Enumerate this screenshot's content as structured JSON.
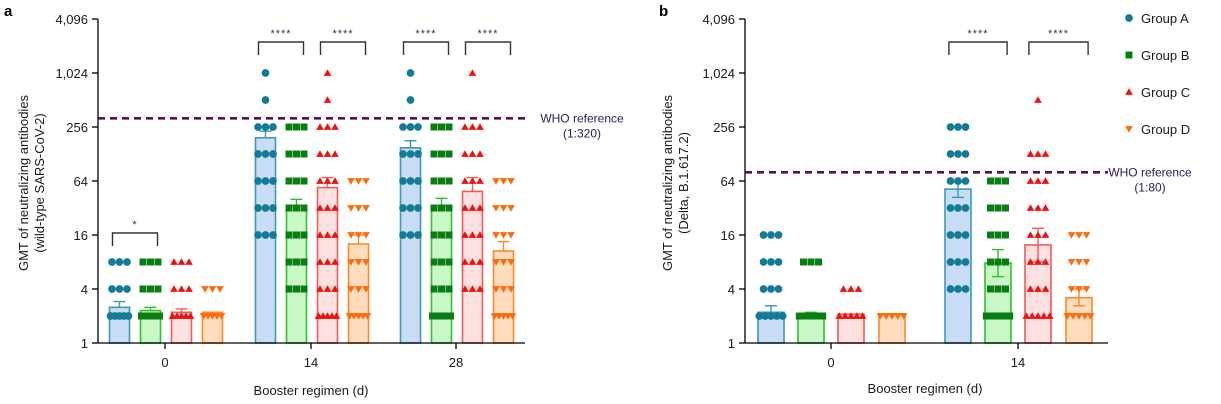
{
  "legend": {
    "items": [
      {
        "label": "Group A",
        "marker": "circle",
        "color": "#137b95",
        "fill": "#c8dcf5",
        "stroke": "#3a98b8"
      },
      {
        "label": "Group B",
        "marker": "square",
        "color": "#0a7d15",
        "fill": "#c9f7c5",
        "stroke": "#2fc22c"
      },
      {
        "label": "Group C",
        "marker": "triangle-up",
        "color": "#f11010",
        "fill": "#fde0e0",
        "stroke": "#ef5a5a"
      },
      {
        "label": "Group D",
        "marker": "triangle-down",
        "color": "#ff6a0a",
        "fill": "#ffdcbe",
        "stroke": "#fb8a2a"
      }
    ]
  },
  "chart_data": [
    {
      "panel": "a",
      "type": "bar",
      "title": "",
      "xlabel": "Booster regimen (d)",
      "ylabel_line1": "GMT of neutralizing antibodies",
      "ylabel_line2": "(wild-type SARS-CoV-2)",
      "yscale": "log2",
      "ylim": [
        1,
        4096
      ],
      "yticks": [
        1,
        4,
        16,
        64,
        256,
        1024,
        4096
      ],
      "ytick_labels": [
        "1",
        "4",
        "16",
        "64",
        "256",
        "1,024",
        "4,096"
      ],
      "categories": [
        "0",
        "14",
        "28"
      ],
      "reference_line": {
        "value": 320,
        "label_line1": "WHO reference",
        "label_line2": "(1:320)",
        "color": "#5a0f4f"
      },
      "series": [
        {
          "name": "Group A",
          "values": [
            2.5,
            194,
            150
          ],
          "error_upper": [
            2.9,
            230,
            180
          ],
          "points": [
            [
              2,
              4,
              8
            ],
            [
              16,
              32,
              64,
              128,
              256,
              512,
              1024
            ],
            [
              16,
              32,
              64,
              128,
              256,
              512,
              1024
            ]
          ]
        },
        {
          "name": "Group B",
          "values": [
            2.3,
            34,
            34
          ],
          "error_upper": [
            2.5,
            40,
            41
          ],
          "points": [
            [
              2,
              4,
              8
            ],
            [
              4,
              8,
              16,
              32,
              64,
              128,
              256
            ],
            [
              2,
              4,
              8,
              16,
              32,
              64,
              128,
              256
            ]
          ]
        },
        {
          "name": "Group C",
          "values": [
            2.2,
            54,
            49
          ],
          "error_upper": [
            2.4,
            70,
            70
          ],
          "points": [
            [
              2,
              4,
              8
            ],
            [
              2,
              4,
              8,
              16,
              32,
              64,
              128,
              256,
              512,
              1024
            ],
            [
              4,
              8,
              16,
              32,
              64,
              128,
              256,
              1024
            ]
          ]
        },
        {
          "name": "Group D",
          "values": [
            2.2,
            12.7,
            10.6
          ],
          "error_upper": [
            2.2,
            16,
            13.5
          ],
          "points": [
            [
              2,
              4
            ],
            [
              2,
              4,
              8,
              16,
              32,
              64
            ],
            [
              2,
              4,
              8,
              16,
              32,
              64
            ]
          ]
        }
      ],
      "significance": [
        {
          "label": "*",
          "category": "0",
          "from_series": 0,
          "to_series": 1
        },
        {
          "label": "****",
          "category": "14",
          "from_series": 0,
          "to_series": 1
        },
        {
          "label": "****",
          "category": "14",
          "from_series": 2,
          "to_series": 3
        },
        {
          "label": "****",
          "category": "28",
          "from_series": 0,
          "to_series": 1
        },
        {
          "label": "****",
          "category": "28",
          "from_series": 2,
          "to_series": 3
        }
      ]
    },
    {
      "panel": "b",
      "type": "bar",
      "title": "",
      "xlabel": "Booster regimen (d)",
      "ylabel_line1": "GMT of neutralizing antibodies",
      "ylabel_line2": "(Delta, B.1.617.2)",
      "yscale": "log2",
      "ylim": [
        1,
        4096
      ],
      "yticks": [
        1,
        4,
        16,
        64,
        256,
        1024,
        4096
      ],
      "ytick_labels": [
        "1",
        "4",
        "16",
        "64",
        "256",
        "1,024",
        "4,096"
      ],
      "categories": [
        "0",
        "14"
      ],
      "reference_line": {
        "value": 80,
        "label_line1": "WHO reference",
        "label_line2": "(1:80)",
        "color": "#5a0f4f"
      },
      "series": [
        {
          "name": "Group A",
          "values": [
            2.2,
            52
          ],
          "error_upper": [
            2.6,
            62
          ],
          "error_lower": [
            2.2,
            42
          ],
          "points": [
            [
              2,
              4,
              8,
              16
            ],
            [
              4,
              8,
              16,
              32,
              64,
              128,
              256
            ]
          ]
        },
        {
          "name": "Group B",
          "values": [
            2.1,
            7.8
          ],
          "error_upper": [
            2.2,
            11
          ],
          "error_lower": [
            2.1,
            5.5
          ],
          "points": [
            [
              2,
              8
            ],
            [
              2,
              4,
              8,
              16,
              32,
              64
            ]
          ]
        },
        {
          "name": "Group C",
          "values": [
            2.1,
            12.4
          ],
          "error_upper": [
            2.1,
            19
          ],
          "error_lower": [
            2.1,
            8
          ],
          "points": [
            [
              2,
              4
            ],
            [
              2,
              4,
              8,
              16,
              32,
              64,
              128,
              512
            ]
          ]
        },
        {
          "name": "Group D",
          "values": [
            2.1,
            3.2
          ],
          "error_upper": [
            2.1,
            4
          ],
          "error_lower": [
            2.1,
            2.6
          ],
          "points": [
            [
              2
            ],
            [
              2,
              4,
              8,
              16
            ]
          ]
        }
      ],
      "significance": [
        {
          "label": "****",
          "category": "14",
          "from_series": 0,
          "to_series": 1
        },
        {
          "label": "****",
          "category": "14",
          "from_series": 2,
          "to_series": 3
        }
      ]
    }
  ]
}
